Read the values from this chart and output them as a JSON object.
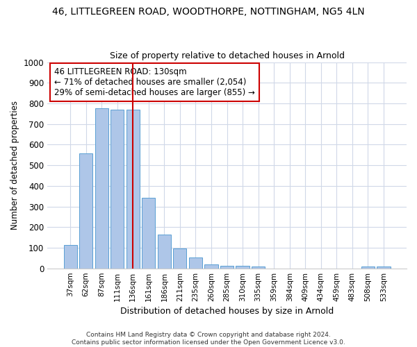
{
  "title_line1": "46, LITTLEGREEN ROAD, WOODTHORPE, NOTTINGHAM, NG5 4LN",
  "title_line2": "Size of property relative to detached houses in Arnold",
  "xlabel": "Distribution of detached houses by size in Arnold",
  "ylabel": "Number of detached properties",
  "categories": [
    "37sqm",
    "62sqm",
    "87sqm",
    "111sqm",
    "136sqm",
    "161sqm",
    "186sqm",
    "211sqm",
    "235sqm",
    "260sqm",
    "285sqm",
    "310sqm",
    "335sqm",
    "359sqm",
    "384sqm",
    "409sqm",
    "434sqm",
    "459sqm",
    "483sqm",
    "508sqm",
    "533sqm"
  ],
  "values": [
    113,
    558,
    778,
    770,
    770,
    343,
    163,
    98,
    53,
    18,
    13,
    13,
    8,
    0,
    0,
    0,
    0,
    0,
    0,
    8,
    8
  ],
  "bar_color": "#aec6e8",
  "bar_edge_color": "#5a9fd4",
  "vline_x_index": 4,
  "vline_color": "#cc0000",
  "annotation_text": "46 LITTLEGREEN ROAD: 130sqm\n← 71% of detached houses are smaller (2,054)\n29% of semi-detached houses are larger (855) →",
  "annotation_box_color": "#ffffff",
  "annotation_box_edge_color": "#cc0000",
  "ylim": [
    0,
    1000
  ],
  "yticks": [
    0,
    100,
    200,
    300,
    400,
    500,
    600,
    700,
    800,
    900,
    1000
  ],
  "footer_line1": "Contains HM Land Registry data © Crown copyright and database right 2024.",
  "footer_line2": "Contains public sector information licensed under the Open Government Licence v3.0.",
  "bg_color": "#ffffff",
  "grid_color": "#d0d8e8"
}
